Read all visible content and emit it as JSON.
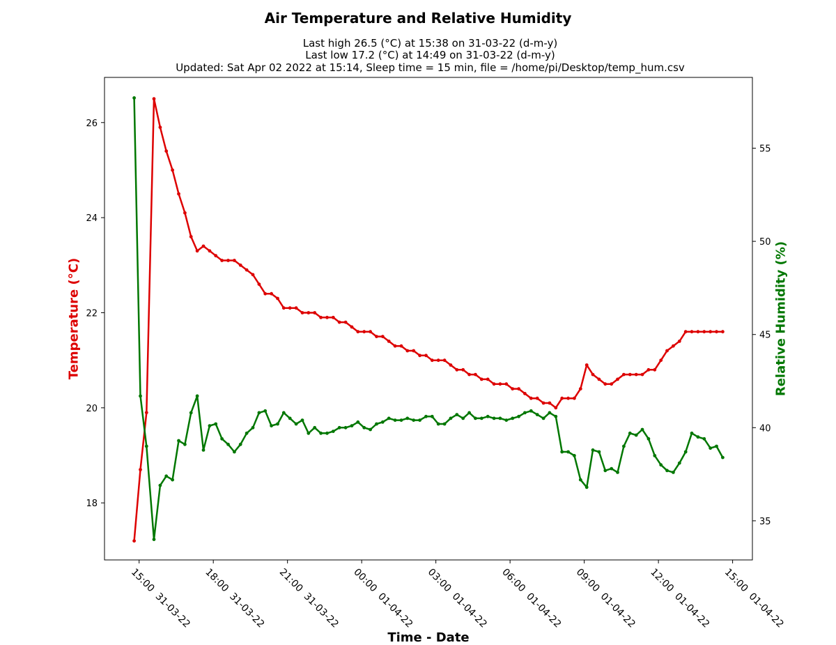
{
  "chart_data": {
    "type": "line",
    "title": "Air Temperature and Relative Humidity",
    "subtitle_lines": [
      "Last high 26.5 (°C) at 15:38 on 31-03-22 (d-m-y)",
      "Last low 17.2 (°C) at 14:49 on 31-03-22 (d-m-y)",
      "Updated: Sat Apr 02 2022 at 15:14, Sleep time = 15 min, file = /home/pi/Desktop/temp_hum.csv"
    ],
    "xlabel": "Time - Date",
    "ylabel_left": "Temperature (°C)",
    "ylabel_right": "Relative Humidity (%)",
    "x_ticks": [
      "15:00  31-03-22",
      "18:00  31-03-22",
      "21:00  31-03-22",
      "00:00  01-04-22",
      "03:00  01-04-22",
      "06:00  01-04-22",
      "09:00  01-04-22",
      "12:00  01-04-22",
      "15:00  01-04-22"
    ],
    "x_unit": "hours since 15:00 31-03-22",
    "xlim": [
      -1.4,
      24.8
    ],
    "ylim_left": [
      16.8,
      26.95
    ],
    "ylim_right": [
      32.9,
      58.8
    ],
    "y_ticks_left": [
      18,
      20,
      22,
      24,
      26
    ],
    "y_ticks_right": [
      35,
      40,
      45,
      50,
      55
    ],
    "grid": false,
    "colors": {
      "temperature": "#dd0000",
      "humidity": "#007700"
    },
    "series": [
      {
        "name": "Temperature (°C)",
        "axis": "left",
        "x": [
          -0.2,
          0.05,
          0.3,
          0.6,
          0.85,
          1.1,
          1.35,
          1.6,
          1.85,
          2.1,
          2.35,
          2.6,
          2.85,
          3.1,
          3.35,
          3.6,
          3.85,
          4.1,
          4.35,
          4.6,
          4.85,
          5.1,
          5.35,
          5.6,
          5.85,
          6.1,
          6.35,
          6.6,
          6.85,
          7.1,
          7.35,
          7.6,
          7.85,
          8.1,
          8.35,
          8.6,
          8.85,
          9.1,
          9.35,
          9.6,
          9.85,
          10.1,
          10.35,
          10.6,
          10.85,
          11.1,
          11.35,
          11.6,
          11.85,
          12.1,
          12.35,
          12.6,
          12.85,
          13.1,
          13.35,
          13.6,
          13.85,
          14.1,
          14.35,
          14.6,
          14.85,
          15.1,
          15.35,
          15.6,
          15.85,
          16.1,
          16.35,
          16.6,
          16.85,
          17.1,
          17.35,
          17.6,
          17.85,
          18.1,
          18.35,
          18.6,
          18.85,
          19.1,
          19.35,
          19.6,
          19.85,
          20.1,
          20.35,
          20.6,
          20.85,
          21.1,
          21.35,
          21.6,
          21.85,
          22.1,
          22.35,
          22.6,
          22.85,
          23.1,
          23.35,
          23.6
        ],
        "values": [
          17.2,
          18.7,
          19.9,
          26.5,
          25.9,
          25.4,
          25.0,
          24.5,
          24.1,
          23.6,
          23.3,
          23.4,
          23.3,
          23.2,
          23.1,
          23.1,
          23.1,
          23.0,
          22.9,
          22.8,
          22.6,
          22.4,
          22.4,
          22.3,
          22.1,
          22.1,
          22.1,
          22.0,
          22.0,
          22.0,
          21.9,
          21.9,
          21.9,
          21.8,
          21.8,
          21.7,
          21.6,
          21.6,
          21.6,
          21.5,
          21.5,
          21.4,
          21.3,
          21.3,
          21.2,
          21.2,
          21.1,
          21.1,
          21.0,
          21.0,
          21.0,
          20.9,
          20.8,
          20.8,
          20.7,
          20.7,
          20.6,
          20.6,
          20.5,
          20.5,
          20.5,
          20.4,
          20.4,
          20.3,
          20.2,
          20.2,
          20.1,
          20.1,
          20.0,
          20.2,
          20.2,
          20.2,
          20.4,
          20.9,
          20.7,
          20.6,
          20.5,
          20.5,
          20.6,
          20.7,
          20.7,
          20.7,
          20.7,
          20.8,
          20.8,
          21.0,
          21.2,
          21.3,
          21.4,
          21.6,
          21.6,
          21.6,
          21.6,
          21.6,
          21.6,
          21.6
        ]
      },
      {
        "name": "Relative Humidity (%)",
        "axis": "right",
        "x": [
          -0.2,
          0.05,
          0.3,
          0.6,
          0.85,
          1.1,
          1.35,
          1.6,
          1.85,
          2.1,
          2.35,
          2.6,
          2.85,
          3.1,
          3.35,
          3.6,
          3.85,
          4.1,
          4.35,
          4.6,
          4.85,
          5.1,
          5.35,
          5.6,
          5.85,
          6.1,
          6.35,
          6.6,
          6.85,
          7.1,
          7.35,
          7.6,
          7.85,
          8.1,
          8.35,
          8.6,
          8.85,
          9.1,
          9.35,
          9.6,
          9.85,
          10.1,
          10.35,
          10.6,
          10.85,
          11.1,
          11.35,
          11.6,
          11.85,
          12.1,
          12.35,
          12.6,
          12.85,
          13.1,
          13.35,
          13.6,
          13.85,
          14.1,
          14.35,
          14.6,
          14.85,
          15.1,
          15.35,
          15.6,
          15.85,
          16.1,
          16.35,
          16.6,
          16.85,
          17.1,
          17.35,
          17.6,
          17.85,
          18.1,
          18.35,
          18.6,
          18.85,
          19.1,
          19.35,
          19.6,
          19.85,
          20.1,
          20.35,
          20.6,
          20.85,
          21.1,
          21.35,
          21.6,
          21.85,
          22.1,
          22.35,
          22.6,
          22.85,
          23.1,
          23.35,
          23.6
        ],
        "values": [
          57.7,
          41.7,
          39.0,
          34.0,
          36.9,
          37.4,
          37.2,
          39.3,
          39.1,
          40.8,
          41.7,
          38.8,
          40.1,
          40.2,
          39.4,
          39.1,
          38.7,
          39.1,
          39.7,
          40.0,
          40.8,
          40.9,
          40.1,
          40.2,
          40.8,
          40.5,
          40.2,
          40.4,
          39.7,
          40.0,
          39.7,
          39.7,
          39.8,
          40.0,
          40.0,
          40.1,
          40.3,
          40.0,
          39.9,
          40.2,
          40.3,
          40.5,
          40.4,
          40.4,
          40.5,
          40.4,
          40.4,
          40.6,
          40.6,
          40.2,
          40.2,
          40.5,
          40.7,
          40.5,
          40.8,
          40.5,
          40.5,
          40.6,
          40.5,
          40.5,
          40.4,
          40.5,
          40.6,
          40.8,
          40.9,
          40.7,
          40.5,
          40.8,
          40.6,
          38.7,
          38.7,
          38.5,
          37.2,
          36.8,
          38.8,
          38.7,
          37.7,
          37.8,
          37.6,
          39.0,
          39.7,
          39.6,
          39.9,
          39.4,
          38.5,
          38.0,
          37.7,
          37.6,
          38.1,
          38.7,
          39.7,
          39.5,
          39.4,
          38.9,
          39.0,
          38.4
        ]
      }
    ]
  }
}
